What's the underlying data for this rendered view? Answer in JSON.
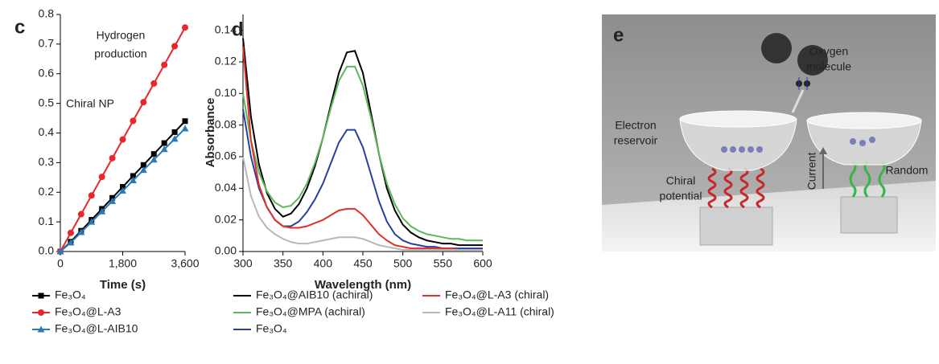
{
  "chart_data": [
    {
      "type": "line",
      "panel": "c",
      "xlabel": "Time (s)",
      "annotations": [
        "Hydrogen",
        "production",
        "Chiral NP"
      ],
      "x": [
        0,
        300,
        600,
        900,
        1200,
        1500,
        1800,
        2100,
        2400,
        2700,
        3000,
        3300,
        3600
      ],
      "xlim": [
        0,
        3600
      ],
      "xticks": [
        0,
        {
          "value": 1800,
          "label": "1,800"
        },
        {
          "value": 3600,
          "label": "3,600"
        }
      ],
      "ylim": [
        0,
        0.8
      ],
      "yticks": [
        {
          "value": 0,
          "label": "0.0"
        },
        0.1,
        0.2,
        0.3,
        0.4,
        0.5,
        0.6,
        0.7,
        0.8
      ],
      "series": [
        {
          "name": "Fe₃O₄",
          "color": "#000000",
          "marker": "square",
          "values": [
            0,
            0.033,
            0.07,
            0.107,
            0.144,
            0.181,
            0.218,
            0.255,
            0.292,
            0.329,
            0.366,
            0.403,
            0.44
          ]
        },
        {
          "name": "Fe₃O₄@L-A3",
          "color": "#e8272a",
          "marker": "circle",
          "values": [
            0,
            0.063,
            0.126,
            0.189,
            0.252,
            0.315,
            0.378,
            0.441,
            0.504,
            0.567,
            0.63,
            0.693,
            0.756
          ]
        },
        {
          "name": "Fe₃O₄@L-AIB10",
          "color": "#2a7ab8",
          "marker": "triangle",
          "values": [
            0,
            0.03,
            0.065,
            0.1,
            0.135,
            0.17,
            0.205,
            0.24,
            0.275,
            0.31,
            0.345,
            0.38,
            0.415
          ]
        }
      ]
    },
    {
      "type": "line",
      "panel": "d",
      "xlabel": "Wavelength (nm)",
      "ylabel": "Absorbance",
      "x": [
        300,
        310,
        320,
        330,
        340,
        350,
        360,
        370,
        380,
        390,
        400,
        410,
        420,
        430,
        440,
        450,
        460,
        470,
        480,
        490,
        500,
        510,
        520,
        530,
        540,
        550,
        560,
        570,
        580,
        590,
        600
      ],
      "xlim": [
        300,
        600
      ],
      "xticks": [
        300,
        350,
        400,
        450,
        500,
        550,
        600
      ],
      "ylim": [
        0,
        0.15
      ],
      "yticks": [
        {
          "value": 0,
          "label": "0.00"
        },
        {
          "value": 0.02,
          "label": "0.02"
        },
        {
          "value": 0.04,
          "label": "0.04"
        },
        {
          "value": 0.06,
          "label": "0.06"
        },
        {
          "value": 0.08,
          "label": "0.08"
        },
        {
          "value": 0.1,
          "label": "0.10"
        },
        {
          "value": 0.12,
          "label": "0.12"
        },
        {
          "value": 0.14,
          "label": "0.14"
        }
      ],
      "series": [
        {
          "name": "Fe₃O₄@AIB10 (achiral)",
          "color": "#000000",
          "values": [
            0.135,
            0.085,
            0.055,
            0.037,
            0.027,
            0.022,
            0.024,
            0.03,
            0.04,
            0.054,
            0.072,
            0.093,
            0.113,
            0.126,
            0.127,
            0.113,
            0.088,
            0.062,
            0.04,
            0.026,
            0.017,
            0.012,
            0.009,
            0.007,
            0.006,
            0.005,
            0.005,
            0.004,
            0.004,
            0.004,
            0.004
          ]
        },
        {
          "name": "Fe₃O₄@MPA (achiral)",
          "color": "#5cb85c",
          "values": [
            0.1,
            0.07,
            0.05,
            0.038,
            0.031,
            0.028,
            0.029,
            0.034,
            0.043,
            0.056,
            0.072,
            0.091,
            0.108,
            0.117,
            0.117,
            0.105,
            0.085,
            0.062,
            0.043,
            0.03,
            0.021,
            0.016,
            0.013,
            0.011,
            0.01,
            0.009,
            0.008,
            0.008,
            0.007,
            0.007,
            0.007
          ]
        },
        {
          "name": "Fe₃O₄",
          "color": "#2a3f9a",
          "values": [
            0.09,
            0.06,
            0.04,
            0.028,
            0.02,
            0.016,
            0.016,
            0.019,
            0.025,
            0.033,
            0.043,
            0.056,
            0.069,
            0.077,
            0.077,
            0.066,
            0.049,
            0.032,
            0.019,
            0.011,
            0.007,
            0.005,
            0.004,
            0.003,
            0.003,
            0.002,
            0.002,
            0.002,
            0.002,
            0.002,
            0.002
          ]
        },
        {
          "name": "Fe₃O₄@L-A3 (chiral)",
          "color": "#e0312c",
          "values": [
            0.13,
            0.07,
            0.042,
            0.028,
            0.02,
            0.016,
            0.015,
            0.015,
            0.016,
            0.018,
            0.02,
            0.023,
            0.026,
            0.027,
            0.027,
            0.023,
            0.017,
            0.011,
            0.007,
            0.004,
            0.003,
            0.002,
            0.002,
            0.002,
            0.002,
            0.002,
            0.002,
            0.001,
            0.001,
            0.001,
            0.001
          ]
        },
        {
          "name": "Fe₃O₄@L-A11 (chiral)",
          "color": "#b8b8b8",
          "values": [
            0.06,
            0.035,
            0.022,
            0.015,
            0.011,
            0.008,
            0.006,
            0.005,
            0.005,
            0.006,
            0.007,
            0.008,
            0.009,
            0.009,
            0.009,
            0.008,
            0.006,
            0.004,
            0.003,
            0.002,
            0.001,
            0.001,
            0.001,
            0.001,
            0.001,
            0.001,
            0.001,
            0.001,
            0.001,
            0.001,
            0.001
          ]
        }
      ]
    }
  ],
  "illustration": {
    "panel": "e",
    "oxygen": [
      "Oxygen",
      "molecule"
    ],
    "reservoir": [
      "Electron",
      "reservoir"
    ],
    "chiral": [
      "Chiral",
      "potential"
    ],
    "current": "Current",
    "random": "Random"
  }
}
